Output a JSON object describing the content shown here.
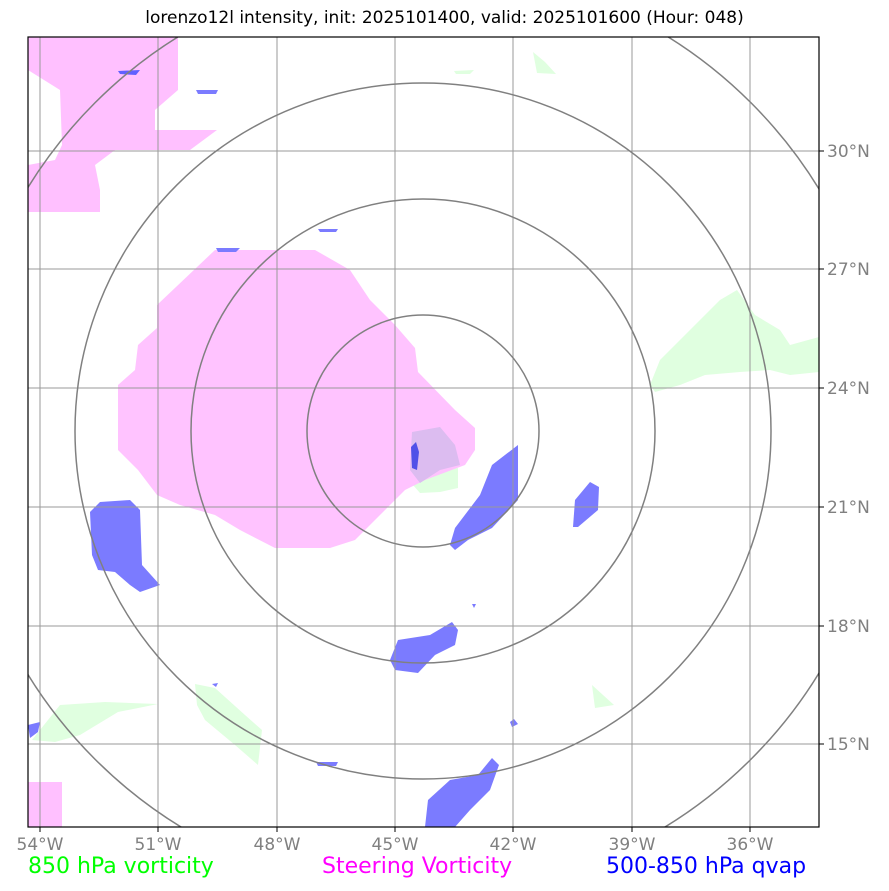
{
  "title": "lorenzo12l intensity, init: 2025101400, valid: 2025101600 (Hour: 048)",
  "lon_labels": [
    "54°W",
    "51°W",
    "48°W",
    "45°W",
    "42°W",
    "39°W",
    "36°W"
  ],
  "lat_labels": [
    "30°N",
    "27°N",
    "24°N",
    "21°N",
    "18°N",
    "15°N"
  ],
  "legend": {
    "vort850": "850 hPa vorticity",
    "steering": "Steering Vorticity",
    "qvap": "500-850 hPa qvap"
  },
  "colors": {
    "vort850": "#00ff00",
    "steering": "#ff00ff",
    "qvap": "#0000ff",
    "vort850_fill": "#e0ffe0",
    "steering_fill": "#ffc0ff",
    "qvap_fill": "#7b7bff",
    "grid": "#9a9a9a",
    "rings": "#808080"
  }
}
